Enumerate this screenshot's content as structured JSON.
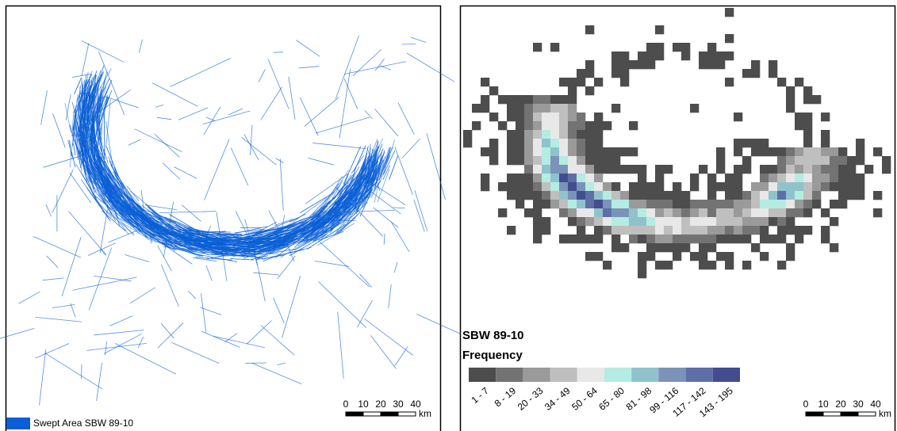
{
  "left_map": {
    "legend": {
      "label": "Swept Area SBW 89-10",
      "color": "#0a5fd6"
    },
    "scale_bar": {
      "ticks": [
        0,
        10,
        20,
        30,
        40
      ],
      "unit": "km"
    }
  },
  "right_map": {
    "legend": {
      "title": "SBW 89-10",
      "subtitle": "Frequency",
      "classes": [
        {
          "label": "1 - 7",
          "color": "#4d4d4d"
        },
        {
          "label": "8 - 19",
          "color": "#737373"
        },
        {
          "label": "20 - 33",
          "color": "#9a9a9a"
        },
        {
          "label": "34 - 49",
          "color": "#bfbfbf"
        },
        {
          "label": "50 - 64",
          "color": "#e8e8e8"
        },
        {
          "label": "65 - 80",
          "color": "#b4ece1"
        },
        {
          "label": "81 - 98",
          "color": "#90c2cc"
        },
        {
          "label": "99 - 116",
          "color": "#7b93b9"
        },
        {
          "label": "117 - 142",
          "color": "#5e6fa7"
        },
        {
          "label": "143 - 195",
          "color": "#414d8e"
        }
      ]
    },
    "scale_bar": {
      "ticks": [
        0,
        10,
        20,
        30,
        40
      ],
      "unit": "km"
    }
  }
}
